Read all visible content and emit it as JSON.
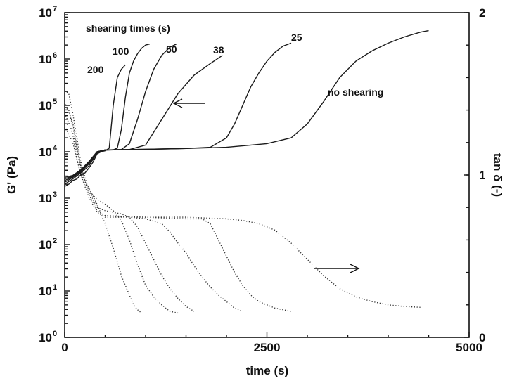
{
  "chart_data": {
    "type": "line",
    "xlabel": "time (s)",
    "ylabel_left": "G' (Pa)",
    "ylabel_right": "tan δ (-)",
    "xlim": [
      0,
      5000
    ],
    "ylim_left": [
      1,
      10000000
    ],
    "ylim_left_scale": "log",
    "ylim_right": [
      0,
      2
    ],
    "x_ticks": [
      {
        "value": 0,
        "label": "0"
      },
      {
        "value": 2500,
        "label": "2500"
      },
      {
        "value": 5000,
        "label": "5000"
      }
    ],
    "y_left_ticks": [
      {
        "value": 1,
        "base": "10",
        "exp": "0"
      },
      {
        "value": 10,
        "base": "10",
        "exp": "1"
      },
      {
        "value": 100,
        "base": "10",
        "exp": "2"
      },
      {
        "value": 1000,
        "base": "10",
        "exp": "3"
      },
      {
        "value": 10000,
        "base": "10",
        "exp": "4"
      },
      {
        "value": 100000,
        "base": "10",
        "exp": "5"
      },
      {
        "value": 1000000,
        "base": "10",
        "exp": "6"
      },
      {
        "value": 10000000,
        "base": "10",
        "exp": "7"
      }
    ],
    "y_right_ticks": [
      {
        "value": 0,
        "label": "0"
      },
      {
        "value": 1,
        "label": "1"
      },
      {
        "value": 2,
        "label": "2"
      }
    ],
    "legend_title": "shearing times (s)",
    "g_prime_series": [
      {
        "label": "200",
        "points": [
          [
            0,
            1800
          ],
          [
            50,
            2000
          ],
          [
            100,
            2400
          ],
          [
            150,
            2600
          ],
          [
            200,
            3200
          ],
          [
            250,
            3500
          ],
          [
            300,
            4500
          ],
          [
            350,
            6000
          ],
          [
            400,
            9000
          ],
          [
            450,
            10000
          ],
          [
            500,
            10500
          ],
          [
            550,
            12000
          ],
          [
            600,
            100000
          ],
          [
            650,
            400000
          ],
          [
            700,
            600000
          ],
          [
            750,
            750000
          ]
        ]
      },
      {
        "label": "100",
        "points": [
          [
            0,
            2000
          ],
          [
            100,
            2600
          ],
          [
            200,
            3500
          ],
          [
            300,
            5000
          ],
          [
            400,
            9500
          ],
          [
            500,
            10800
          ],
          [
            600,
            11000
          ],
          [
            650,
            12000
          ],
          [
            700,
            30000
          ],
          [
            750,
            150000
          ],
          [
            800,
            500000
          ],
          [
            850,
            900000
          ],
          [
            900,
            1300000
          ],
          [
            950,
            1700000
          ],
          [
            1000,
            2000000
          ],
          [
            1050,
            2100000
          ]
        ]
      },
      {
        "label": "50",
        "points": [
          [
            0,
            2200
          ],
          [
            100,
            2800
          ],
          [
            200,
            3700
          ],
          [
            300,
            5500
          ],
          [
            400,
            9800
          ],
          [
            500,
            11000
          ],
          [
            700,
            11200
          ],
          [
            800,
            15000
          ],
          [
            900,
            50000
          ],
          [
            1000,
            200000
          ],
          [
            1100,
            600000
          ],
          [
            1200,
            1200000
          ],
          [
            1300,
            1800000
          ],
          [
            1380,
            2100000
          ]
        ]
      },
      {
        "label": "38",
        "points": [
          [
            0,
            2400
          ],
          [
            100,
            2900
          ],
          [
            200,
            3800
          ],
          [
            300,
            5800
          ],
          [
            400,
            10000
          ],
          [
            500,
            11000
          ],
          [
            800,
            11200
          ],
          [
            1000,
            14000
          ],
          [
            1200,
            50000
          ],
          [
            1400,
            180000
          ],
          [
            1600,
            450000
          ],
          [
            1800,
            800000
          ],
          [
            1950,
            1200000
          ]
        ]
      },
      {
        "label": "25",
        "points": [
          [
            0,
            2600
          ],
          [
            100,
            3000
          ],
          [
            200,
            4000
          ],
          [
            300,
            6000
          ],
          [
            400,
            10000
          ],
          [
            500,
            11000
          ],
          [
            1000,
            11300
          ],
          [
            1500,
            11800
          ],
          [
            1800,
            12500
          ],
          [
            2000,
            20000
          ],
          [
            2100,
            40000
          ],
          [
            2200,
            100000
          ],
          [
            2300,
            250000
          ],
          [
            2400,
            500000
          ],
          [
            2500,
            900000
          ],
          [
            2600,
            1400000
          ],
          [
            2700,
            1900000
          ],
          [
            2800,
            2200000
          ]
        ]
      },
      {
        "label": "no shearing",
        "points": [
          [
            0,
            2800
          ],
          [
            100,
            3100
          ],
          [
            200,
            4100
          ],
          [
            300,
            6200
          ],
          [
            400,
            10000
          ],
          [
            500,
            11000
          ],
          [
            1000,
            11300
          ],
          [
            1500,
            11800
          ],
          [
            2000,
            12500
          ],
          [
            2500,
            15000
          ],
          [
            2800,
            20000
          ],
          [
            3000,
            40000
          ],
          [
            3200,
            120000
          ],
          [
            3400,
            400000
          ],
          [
            3600,
            900000
          ],
          [
            3800,
            1500000
          ],
          [
            4000,
            2200000
          ],
          [
            4200,
            3000000
          ],
          [
            4400,
            3800000
          ],
          [
            4500,
            4100000
          ]
        ]
      }
    ],
    "tan_delta_series": [
      {
        "label": "200",
        "points": [
          [
            0,
            1.3
          ],
          [
            50,
            1.32
          ],
          [
            100,
            1.25
          ],
          [
            150,
            1.1
          ],
          [
            200,
            1.0
          ],
          [
            300,
            0.92
          ],
          [
            400,
            0.82
          ],
          [
            500,
            0.7
          ],
          [
            600,
            0.55
          ],
          [
            700,
            0.38
          ],
          [
            800,
            0.26
          ],
          [
            850,
            0.2
          ],
          [
            900,
            0.17
          ],
          [
            950,
            0.15
          ]
        ]
      },
      {
        "label": "100",
        "points": [
          [
            0,
            1.42
          ],
          [
            50,
            1.4
          ],
          [
            100,
            1.3
          ],
          [
            200,
            1.05
          ],
          [
            300,
            0.9
          ],
          [
            400,
            0.85
          ],
          [
            500,
            0.82
          ],
          [
            600,
            0.78
          ],
          [
            700,
            0.72
          ],
          [
            800,
            0.6
          ],
          [
            900,
            0.45
          ],
          [
            1000,
            0.32
          ],
          [
            1100,
            0.25
          ],
          [
            1200,
            0.2
          ],
          [
            1300,
            0.16
          ],
          [
            1400,
            0.15
          ]
        ]
      },
      {
        "label": "50",
        "points": [
          [
            0,
            1.52
          ],
          [
            50,
            1.5
          ],
          [
            100,
            1.38
          ],
          [
            200,
            1.08
          ],
          [
            300,
            0.9
          ],
          [
            400,
            0.8
          ],
          [
            500,
            0.78
          ],
          [
            700,
            0.76
          ],
          [
            800,
            0.74
          ],
          [
            900,
            0.68
          ],
          [
            1000,
            0.58
          ],
          [
            1100,
            0.48
          ],
          [
            1200,
            0.38
          ],
          [
            1300,
            0.3
          ],
          [
            1400,
            0.24
          ],
          [
            1500,
            0.19
          ],
          [
            1600,
            0.16
          ]
        ]
      },
      {
        "label": "38",
        "points": [
          [
            0,
            1.45
          ],
          [
            100,
            1.32
          ],
          [
            200,
            1.05
          ],
          [
            300,
            0.88
          ],
          [
            400,
            0.78
          ],
          [
            500,
            0.75
          ],
          [
            800,
            0.74
          ],
          [
            1000,
            0.73
          ],
          [
            1200,
            0.7
          ],
          [
            1300,
            0.65
          ],
          [
            1400,
            0.58
          ],
          [
            1500,
            0.52
          ],
          [
            1600,
            0.44
          ],
          [
            1700,
            0.37
          ],
          [
            1800,
            0.31
          ],
          [
            1900,
            0.26
          ],
          [
            2000,
            0.22
          ],
          [
            2100,
            0.18
          ],
          [
            2200,
            0.16
          ]
        ]
      },
      {
        "label": "25",
        "points": [
          [
            0,
            1.38
          ],
          [
            100,
            1.26
          ],
          [
            200,
            1.04
          ],
          [
            300,
            0.88
          ],
          [
            400,
            0.78
          ],
          [
            500,
            0.75
          ],
          [
            1000,
            0.74
          ],
          [
            1500,
            0.73
          ],
          [
            1700,
            0.73
          ],
          [
            1800,
            0.7
          ],
          [
            1900,
            0.6
          ],
          [
            2000,
            0.5
          ],
          [
            2100,
            0.4
          ],
          [
            2200,
            0.32
          ],
          [
            2300,
            0.26
          ],
          [
            2400,
            0.22
          ],
          [
            2600,
            0.18
          ],
          [
            2800,
            0.16
          ]
        ]
      },
      {
        "label": "no shearing",
        "points": [
          [
            0,
            1.3
          ],
          [
            100,
            1.2
          ],
          [
            200,
            1.0
          ],
          [
            300,
            0.86
          ],
          [
            400,
            0.77
          ],
          [
            500,
            0.74
          ],
          [
            1000,
            0.74
          ],
          [
            1500,
            0.74
          ],
          [
            2000,
            0.73
          ],
          [
            2200,
            0.72
          ],
          [
            2400,
            0.7
          ],
          [
            2600,
            0.66
          ],
          [
            2800,
            0.58
          ],
          [
            3000,
            0.48
          ],
          [
            3200,
            0.38
          ],
          [
            3400,
            0.3
          ],
          [
            3600,
            0.25
          ],
          [
            3800,
            0.22
          ],
          [
            4000,
            0.2
          ],
          [
            4200,
            0.19
          ],
          [
            4400,
            0.185
          ]
        ]
      }
    ],
    "annotations": {
      "200": "200",
      "100": "100",
      "50": "50",
      "38": "38",
      "25": "25",
      "no_shearing": "no shearing"
    },
    "grid": false
  }
}
